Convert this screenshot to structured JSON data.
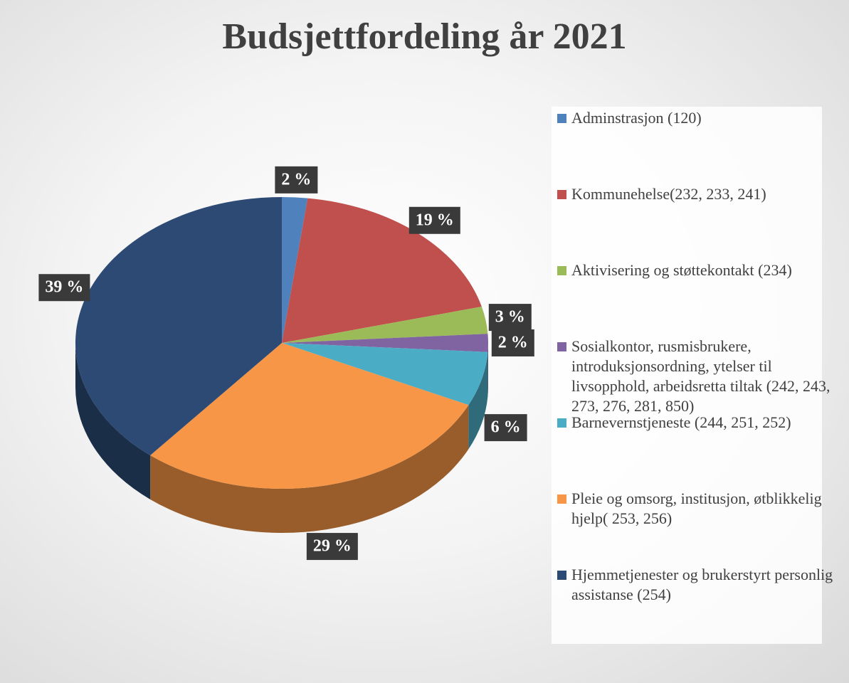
{
  "chart_data": {
    "type": "pie",
    "title": "Budsjettfordeling år 2021",
    "categories": [
      "Adminstrasjon (120)",
      "Kommunehelse(232, 233, 241)",
      "Aktivisering og støttekontakt (234)",
      "Sosialkontor, rusmisbrukere, introduksjonsordning, ytelser til livsopphold, arbeidsretta tiltak (242, 243, 273, 276, 281, 850)",
      "Barnevernstjeneste (244, 251, 252)",
      "Pleie og omsorg, institusjon, øtblikkelig hjelp( 253, 256)",
      "Hjemmetjenester og brukerstyrt personlig assistanse (254)"
    ],
    "values": [
      2,
      19,
      3,
      2,
      6,
      29,
      39
    ],
    "value_labels": [
      "2 %",
      "19 %",
      "3 %",
      "2 %",
      "6 %",
      "29 %",
      "39 %"
    ],
    "colors": [
      "#4f81bd",
      "#c0504d",
      "#9bbb59",
      "#8064a2",
      "#4bacc6",
      "#f79646",
      "#2c4a74"
    ],
    "legend": "right"
  }
}
